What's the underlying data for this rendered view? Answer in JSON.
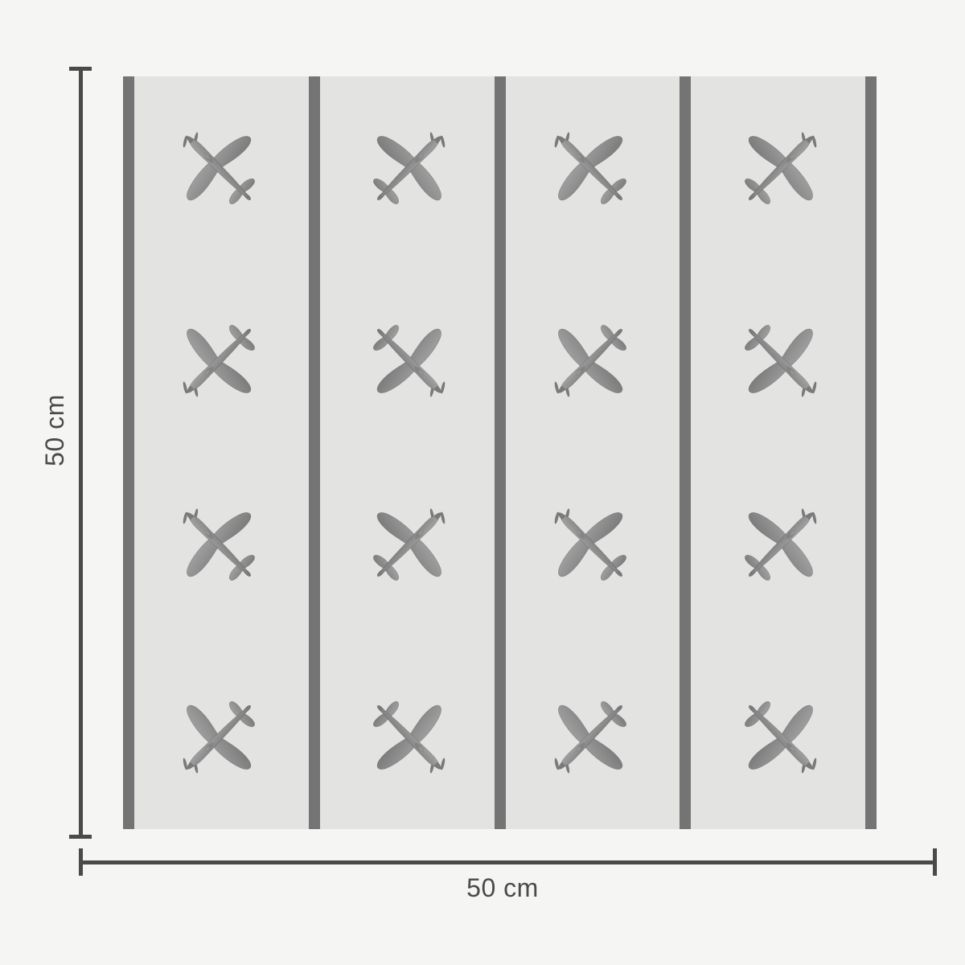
{
  "dimensions": {
    "width_label": "50 cm",
    "height_label": "50 cm"
  },
  "swatch": {
    "columns": 4,
    "rows": 4,
    "stripe_count": 5
  },
  "pattern": {
    "icon": "airplane-icon",
    "grid": [
      [
        "nose-up-left",
        "nose-up-right",
        "nose-up-left",
        "nose-up-right"
      ],
      [
        "nose-down-left",
        "nose-down-right",
        "nose-down-left",
        "nose-down-right"
      ],
      [
        "nose-up-left",
        "nose-up-right",
        "nose-up-left",
        "nose-up-right"
      ],
      [
        "nose-down-left",
        "nose-down-right",
        "nose-down-left",
        "nose-down-right"
      ]
    ]
  },
  "colors": {
    "page_bg": "#f5f5f4",
    "swatch_bg": "#e3e3e2",
    "stripe": "#747474",
    "dim_line": "#4a4a4a",
    "label_text": "#4a4a4a",
    "plane_light": "#a4a4a4",
    "plane_mid": "#8d8d8d",
    "plane_dark": "#7a7a7a"
  }
}
